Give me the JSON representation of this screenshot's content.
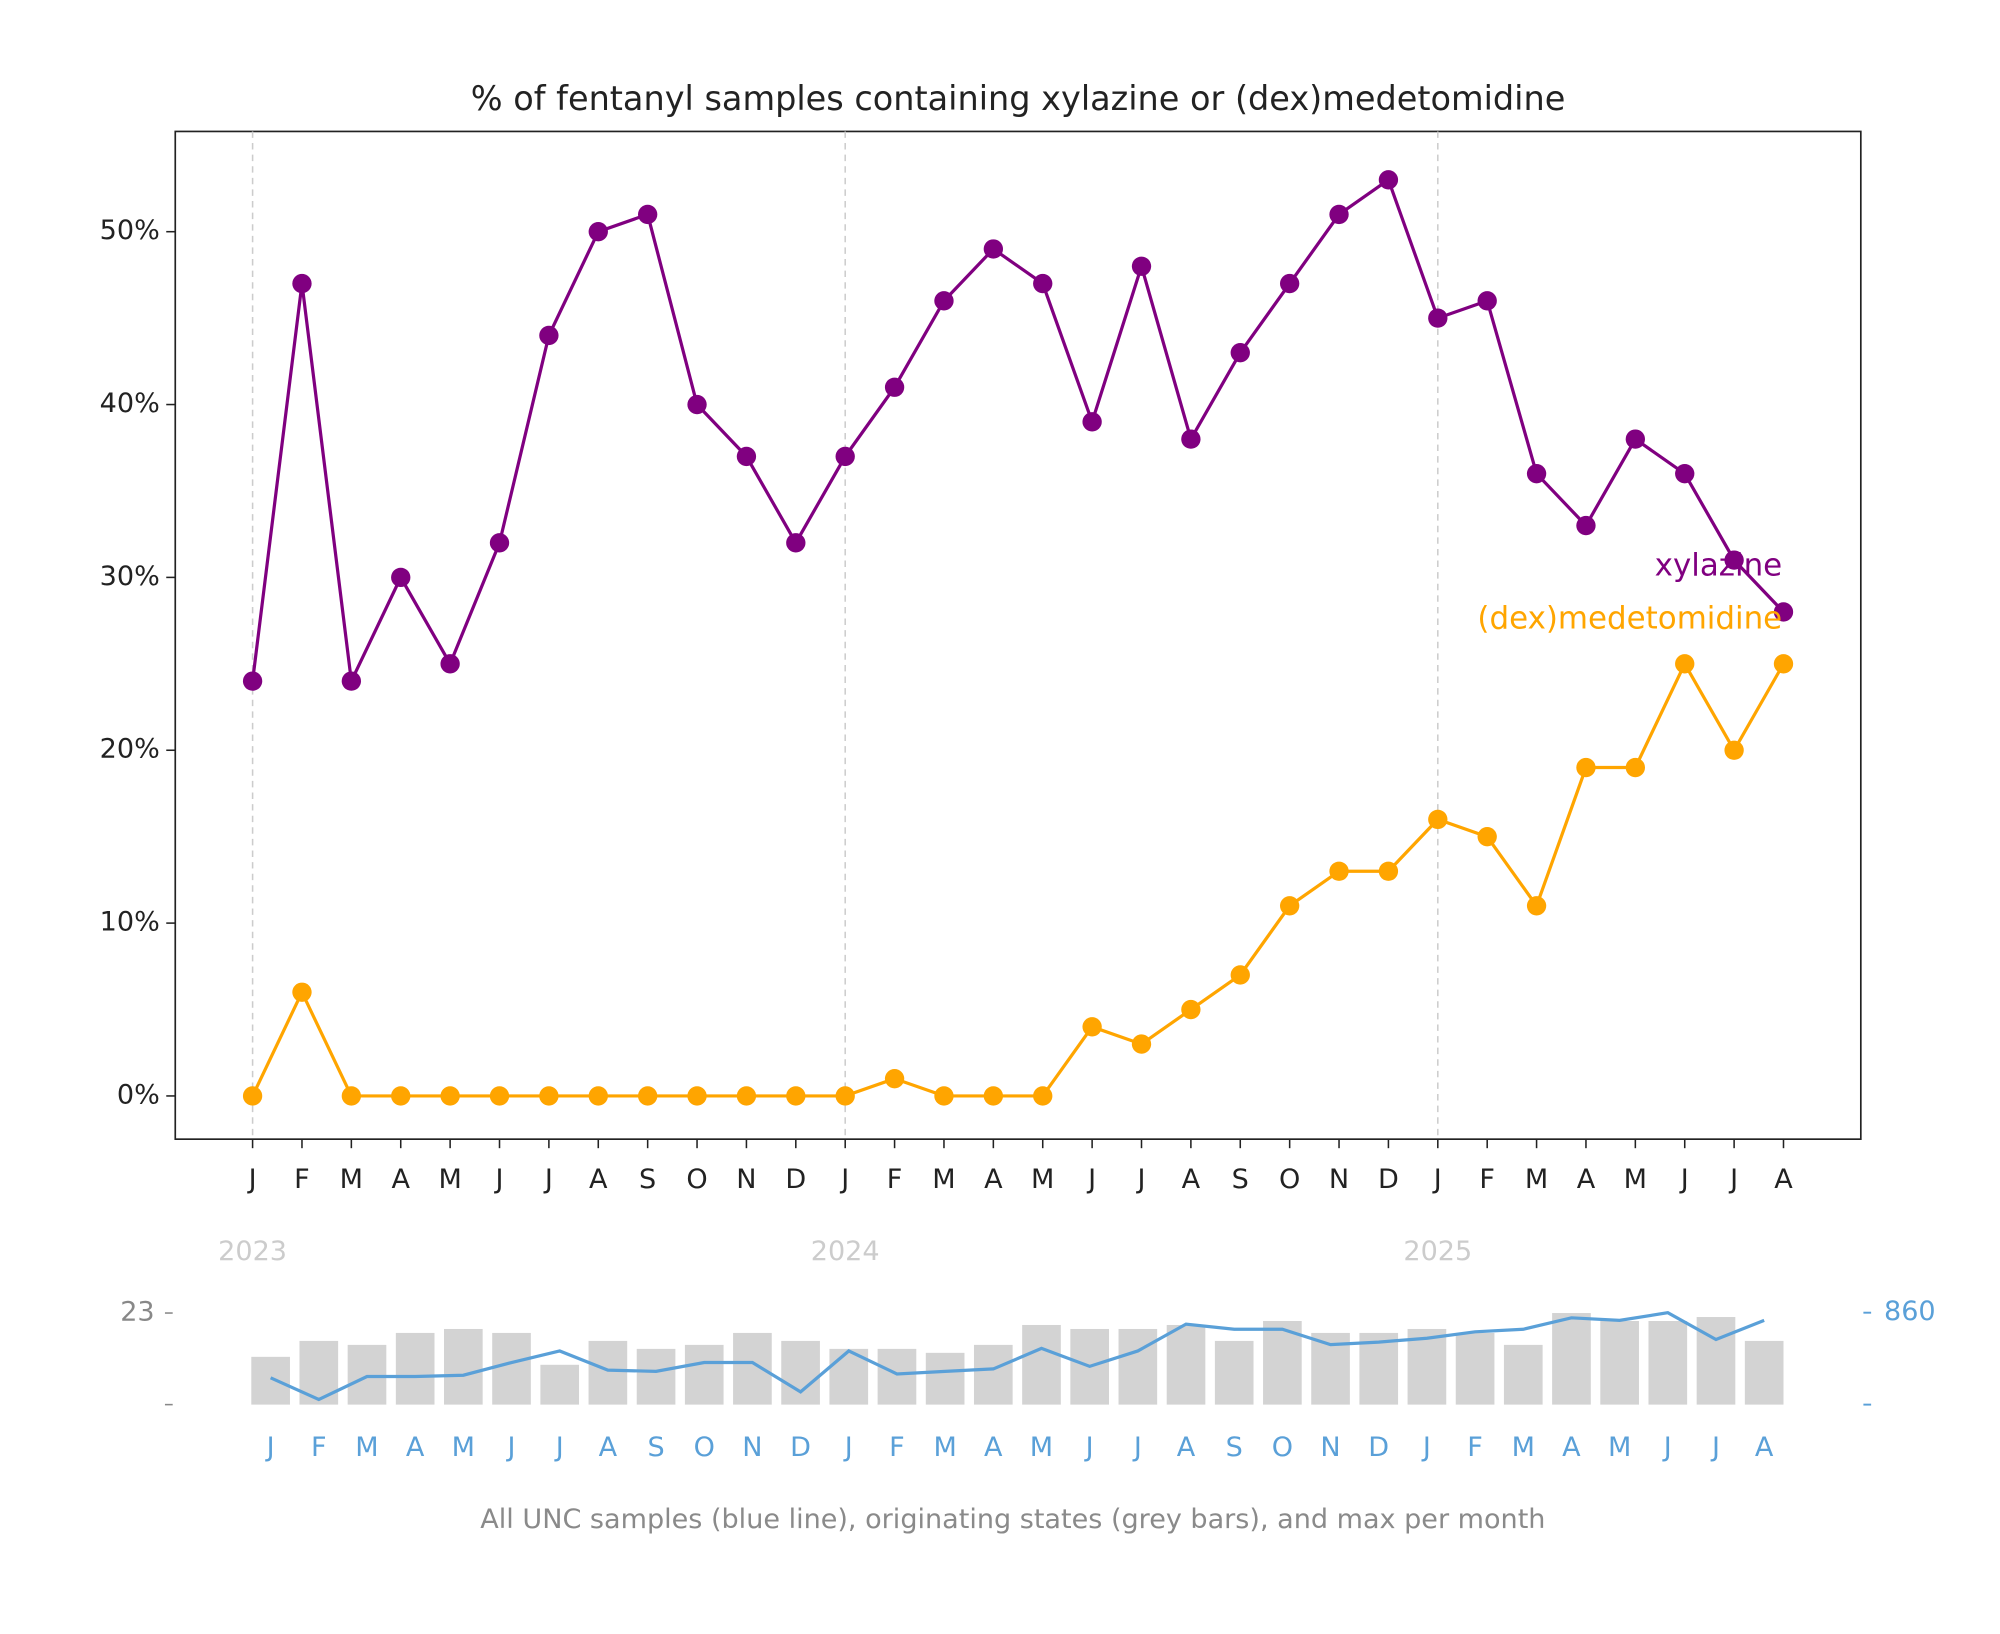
{
  "chart_data": [
    {
      "type": "line",
      "title": "% of fentanyl samples containing xylazine or (dex)medetomidine",
      "categories": [
        "J",
        "F",
        "M",
        "A",
        "M",
        "J",
        "J",
        "A",
        "S",
        "O",
        "N",
        "D",
        "J",
        "F",
        "M",
        "A",
        "M",
        "J",
        "J",
        "A",
        "S",
        "O",
        "N",
        "D",
        "J",
        "F",
        "M",
        "A",
        "M",
        "J",
        "J",
        "A"
      ],
      "year_labels": [
        "2023",
        "2024",
        "2025"
      ],
      "series": [
        {
          "name": "xylazine",
          "color": "#800080",
          "values": [
            24,
            47,
            24,
            30,
            25,
            32,
            44,
            50,
            51,
            40,
            37,
            32,
            37,
            41,
            46,
            49,
            47,
            39,
            48,
            38,
            43,
            47,
            51,
            53,
            45,
            46,
            36,
            33,
            38,
            36,
            31,
            28
          ]
        },
        {
          "name": "(dex)medetomidine",
          "color": "#ffa500",
          "values": [
            0,
            6,
            0,
            0,
            0,
            0,
            0,
            0,
            0,
            0,
            0,
            0,
            0,
            1,
            0,
            0,
            0,
            4,
            3,
            5,
            7,
            11,
            13,
            13,
            16,
            15,
            11,
            19,
            19,
            25,
            20,
            25
          ]
        }
      ],
      "ylim": [
        -2.5,
        55.8
      ],
      "yticks": [
        {
          "value": 0,
          "label": "0%"
        },
        {
          "value": 10,
          "label": "10%"
        },
        {
          "value": 20,
          "label": "20%"
        },
        {
          "value": 30,
          "label": "30%"
        },
        {
          "value": 40,
          "label": "40%"
        },
        {
          "value": 50,
          "label": "50%"
        }
      ]
    },
    {
      "type": "bar_line",
      "caption": "All UNC samples (blue line), originating states (grey bars), and max per month",
      "categories": [
        "J",
        "F",
        "M",
        "A",
        "M",
        "J",
        "J",
        "A",
        "S",
        "O",
        "N",
        "D",
        "J",
        "F",
        "M",
        "A",
        "M",
        "J",
        "J",
        "A",
        "S",
        "O",
        "N",
        "D",
        "J",
        "F",
        "M",
        "A",
        "M",
        "J",
        "J",
        "A"
      ],
      "bars": {
        "color": "#d3d3d3",
        "values": [
          12,
          16,
          15,
          18,
          19,
          18,
          10,
          16,
          14,
          15,
          18,
          16,
          14,
          14,
          13,
          15,
          20,
          19,
          19,
          20,
          16,
          21,
          18,
          18,
          19,
          18,
          15,
          23,
          21,
          21,
          22,
          16
        ]
      },
      "line": {
        "color": "#5aa0d8",
        "axis": "y2",
        "values": [
          251,
          48,
          263,
          263,
          275,
          394,
          502,
          323,
          311,
          394,
          394,
          119,
          502,
          287,
          311,
          334,
          526,
          358,
          502,
          753,
          705,
          705,
          561,
          585,
          621,
          681,
          705,
          812,
          788,
          860,
          609,
          788
        ]
      },
      "ylim": [
        0,
        23.3
      ],
      "yticks": [
        23
      ],
      "y2lim": [
        0,
        868
      ],
      "y2ticks": [
        860
      ]
    }
  ]
}
